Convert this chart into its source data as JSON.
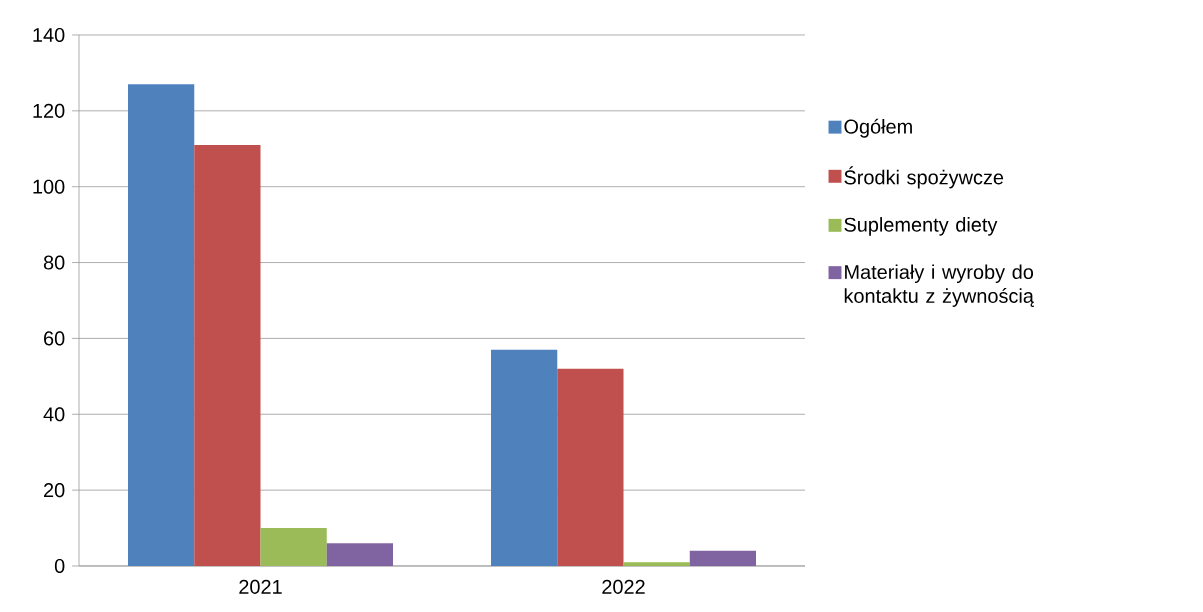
{
  "chart_data": {
    "type": "bar",
    "categories": [
      "2021",
      "2022"
    ],
    "series": [
      {
        "name": "Ogółem",
        "color": "#4f81bd",
        "values": [
          127,
          57
        ]
      },
      {
        "name": "Środki spożywcze",
        "color": "#c0504d",
        "values": [
          111,
          52
        ]
      },
      {
        "name": "Suplementy diety",
        "color": "#9bbb59",
        "values": [
          10,
          1
        ]
      },
      {
        "name": "Materiały i wyroby do kontaktu z żywnością",
        "color": "#8064a2",
        "values": [
          6,
          4
        ]
      }
    ],
    "ylim": [
      0,
      140
    ],
    "yticks": [
      0,
      20,
      40,
      60,
      80,
      100,
      120,
      140
    ],
    "grid": "y",
    "legend": "right"
  }
}
